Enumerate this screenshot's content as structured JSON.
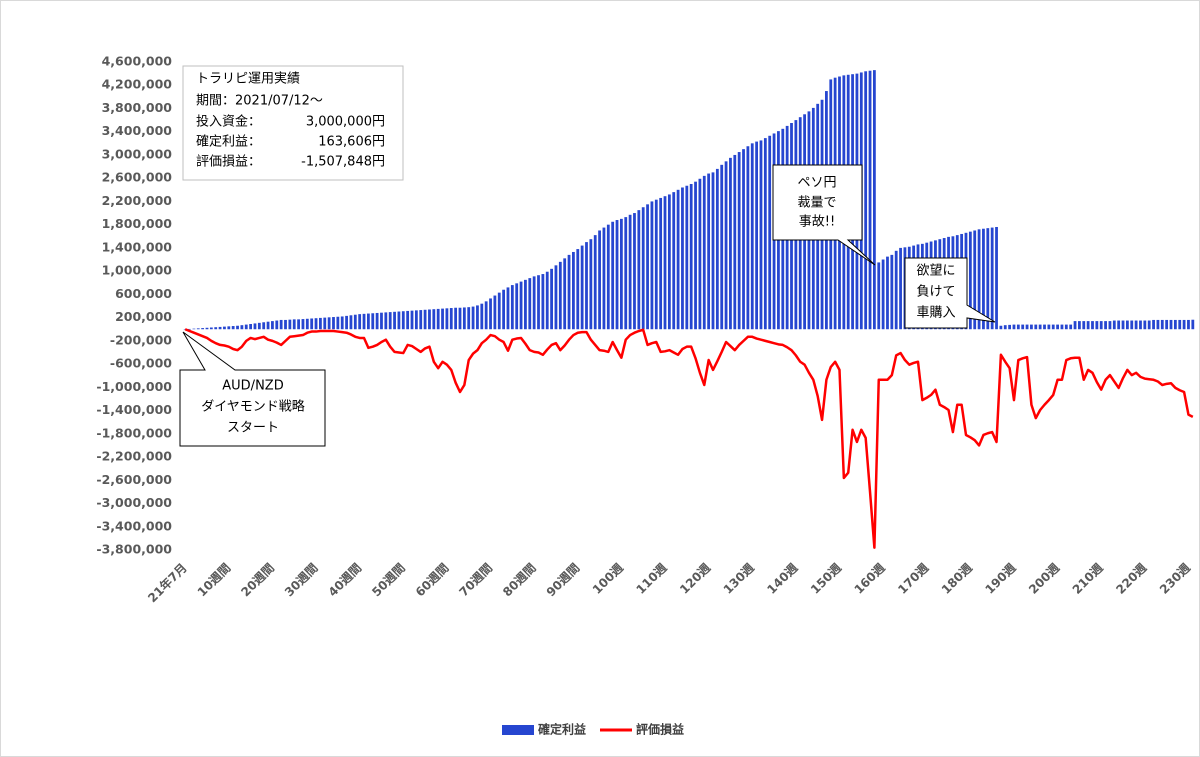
{
  "chart_data": {
    "type": "bar",
    "info_box": {
      "title": "トラリピ運用実績",
      "period": "期間：2021/07/12～",
      "rows": [
        [
          "投入資金：",
          "3,000,000円"
        ],
        [
          "確定利益：",
          "163,606円"
        ],
        [
          "評価損益：",
          "-1,507,848円"
        ]
      ]
    },
    "annotations": [
      {
        "lines": [
          "AUD/NZD",
          "ダイヤモンド戦略",
          "スタート"
        ]
      },
      {
        "lines": [
          "ペソ円",
          "裁量で",
          "事故!!"
        ]
      },
      {
        "lines": [
          "欲望に",
          "負けて",
          "車購入"
        ]
      }
    ],
    "categories": [
      "21年7月",
      null,
      null,
      null,
      null,
      null,
      null,
      null,
      null,
      null,
      "10週間",
      null,
      null,
      null,
      null,
      null,
      null,
      null,
      null,
      null,
      "20週間",
      null,
      null,
      null,
      null,
      null,
      null,
      null,
      null,
      null,
      "30週間",
      null,
      null,
      null,
      null,
      null,
      null,
      null,
      null,
      null,
      "40週間",
      null,
      null,
      null,
      null,
      null,
      null,
      null,
      null,
      null,
      "50週間",
      null,
      null,
      null,
      null,
      null,
      null,
      null,
      null,
      null,
      "60週間",
      null,
      null,
      null,
      null,
      null,
      null,
      null,
      null,
      null,
      "70週間",
      null,
      null,
      null,
      null,
      null,
      null,
      null,
      null,
      null,
      "80週間",
      null,
      null,
      null,
      null,
      null,
      null,
      null,
      null,
      null,
      "90週間",
      null,
      null,
      null,
      null,
      null,
      null,
      null,
      null,
      null,
      "100週",
      null,
      null,
      null,
      null,
      null,
      null,
      null,
      null,
      null,
      "110週",
      null,
      null,
      null,
      null,
      null,
      null,
      null,
      null,
      null,
      "120週",
      null,
      null,
      null,
      null,
      null,
      null,
      null,
      null,
      null,
      "130週",
      null,
      null,
      null,
      null,
      null,
      null,
      null,
      null,
      null,
      "140週",
      null,
      null,
      null,
      null,
      null,
      null,
      null,
      null,
      null,
      "150週",
      null,
      null,
      null,
      null,
      null,
      null,
      null,
      null,
      null,
      "160週",
      null,
      null,
      null,
      null,
      null,
      null,
      null,
      null,
      null,
      "170週",
      null,
      null,
      null,
      null,
      null,
      null,
      null,
      null,
      null,
      "180週",
      null,
      null,
      null,
      null,
      null,
      null,
      null,
      null,
      null,
      "190週",
      null,
      null,
      null,
      null,
      null,
      null,
      null,
      null,
      null,
      "200週",
      null,
      null,
      null,
      null,
      null,
      null,
      null,
      null,
      null,
      "210週",
      null,
      null,
      null,
      null,
      null,
      null,
      null,
      null,
      null,
      "220週",
      null,
      null,
      null,
      null,
      null,
      null,
      null,
      null,
      null,
      "230週",
      null
    ],
    "series": [
      {
        "name": "確定利益",
        "type": "bar",
        "color": "#2646d0",
        "values": [
          0,
          5000,
          10000,
          15000,
          20000,
          25000,
          30000,
          35000,
          40000,
          45000,
          50000,
          55000,
          60000,
          70000,
          80000,
          90000,
          100000,
          110000,
          120000,
          130000,
          140000,
          150000,
          160000,
          160000,
          165000,
          170000,
          170000,
          175000,
          180000,
          185000,
          190000,
          195000,
          200000,
          205000,
          210000,
          215000,
          220000,
          230000,
          240000,
          250000,
          260000,
          265000,
          270000,
          275000,
          280000,
          285000,
          290000,
          295000,
          300000,
          305000,
          310000,
          315000,
          320000,
          325000,
          330000,
          335000,
          340000,
          345000,
          350000,
          355000,
          360000,
          365000,
          370000,
          370000,
          375000,
          380000,
          390000,
          410000,
          440000,
          480000,
          530000,
          580000,
          630000,
          680000,
          720000,
          760000,
          790000,
          820000,
          850000,
          880000,
          910000,
          930000,
          950000,
          990000,
          1040000,
          1100000,
          1160000,
          1220000,
          1280000,
          1330000,
          1380000,
          1440000,
          1500000,
          1550000,
          1620000,
          1700000,
          1750000,
          1800000,
          1850000,
          1880000,
          1900000,
          1930000,
          1970000,
          2000000,
          2050000,
          2100000,
          2150000,
          2200000,
          2230000,
          2260000,
          2290000,
          2320000,
          2360000,
          2400000,
          2440000,
          2470000,
          2500000,
          2540000,
          2590000,
          2640000,
          2680000,
          2700000,
          2760000,
          2830000,
          2890000,
          2950000,
          3000000,
          3050000,
          3100000,
          3150000,
          3200000,
          3230000,
          3250000,
          3290000,
          3330000,
          3370000,
          3410000,
          3450000,
          3500000,
          3550000,
          3600000,
          3650000,
          3700000,
          3750000,
          3810000,
          3880000,
          3950000,
          4100000,
          4300000,
          4330000,
          4350000,
          4370000,
          4380000,
          4390000,
          4400000,
          4420000,
          4440000,
          4450000,
          4460000,
          1150000,
          1200000,
          1250000,
          1280000,
          1350000,
          1400000,
          1410000,
          1420000,
          1440000,
          1460000,
          1470000,
          1490000,
          1510000,
          1530000,
          1550000,
          1570000,
          1590000,
          1600000,
          1620000,
          1640000,
          1660000,
          1680000,
          1700000,
          1720000,
          1730000,
          1740000,
          1750000,
          1760000,
          60000,
          70000,
          75000,
          80000,
          80000,
          80000,
          80000,
          80000,
          80000,
          80000,
          80000,
          80000,
          80000,
          80000,
          80000,
          80000,
          80000,
          140000,
          140000,
          140000,
          140000,
          140000,
          140000,
          140000,
          140000,
          140000,
          150000,
          150000,
          150000,
          150000,
          150000,
          150000,
          150000,
          150000,
          150000,
          160000,
          160000,
          160000,
          160000,
          160000,
          160000,
          160000,
          160000,
          160000,
          163606
        ]
      },
      {
        "name": "評価損益",
        "type": "line",
        "color": "#ff0000",
        "values": [
          0,
          -30000,
          -60000,
          -90000,
          -120000,
          -150000,
          -200000,
          -240000,
          -270000,
          -280000,
          -300000,
          -340000,
          -360000,
          -300000,
          -200000,
          -150000,
          -170000,
          -150000,
          -130000,
          -180000,
          -200000,
          -230000,
          -270000,
          -200000,
          -130000,
          -120000,
          -110000,
          -100000,
          -60000,
          -40000,
          -40000,
          -30000,
          -30000,
          -30000,
          -30000,
          -40000,
          -50000,
          -60000,
          -90000,
          -130000,
          -150000,
          -150000,
          -320000,
          -300000,
          -270000,
          -220000,
          -180000,
          -300000,
          -390000,
          -400000,
          -410000,
          -270000,
          -290000,
          -340000,
          -390000,
          -330000,
          -300000,
          -560000,
          -670000,
          -560000,
          -610000,
          -700000,
          -920000,
          -1080000,
          -960000,
          -530000,
          -420000,
          -360000,
          -240000,
          -180000,
          -100000,
          -120000,
          -180000,
          -220000,
          -370000,
          -180000,
          -160000,
          -150000,
          -250000,
          -360000,
          -390000,
          -400000,
          -440000,
          -350000,
          -270000,
          -240000,
          -360000,
          -280000,
          -180000,
          -100000,
          -60000,
          -50000,
          -50000,
          -180000,
          -270000,
          -360000,
          -370000,
          -390000,
          -220000,
          -360000,
          -490000,
          -180000,
          -100000,
          -60000,
          -30000,
          -10000,
          -270000,
          -240000,
          -220000,
          -390000,
          -380000,
          -360000,
          -400000,
          -440000,
          -340000,
          -300000,
          -300000,
          -500000,
          -750000,
          -960000,
          -530000,
          -700000,
          -550000,
          -390000,
          -220000,
          -290000,
          -360000,
          -270000,
          -200000,
          -130000,
          -130000,
          -160000,
          -180000,
          -200000,
          -220000,
          -240000,
          -260000,
          -270000,
          -310000,
          -360000,
          -450000,
          -560000,
          -610000,
          -750000,
          -870000,
          -1150000,
          -1560000,
          -870000,
          -650000,
          -560000,
          -700000,
          -2560000,
          -2470000,
          -1730000,
          -1940000,
          -1730000,
          -1870000,
          -2800000,
          -3760000,
          -870000,
          -870000,
          -870000,
          -790000,
          -450000,
          -410000,
          -530000,
          -610000,
          -580000,
          -560000,
          -1220000,
          -1180000,
          -1130000,
          -1040000,
          -1300000,
          -1340000,
          -1390000,
          -1770000,
          -1300000,
          -1300000,
          -1820000,
          -1860000,
          -1910000,
          -2000000,
          -1820000,
          -1790000,
          -1770000,
          -1940000,
          -440000,
          -560000,
          -670000,
          -1220000,
          -530000,
          -500000,
          -480000,
          -1300000,
          -1530000,
          -1390000,
          -1300000,
          -1220000,
          -1130000,
          -870000,
          -870000,
          -530000,
          -500000,
          -490000,
          -490000,
          -870000,
          -700000,
          -750000,
          -910000,
          -1040000,
          -870000,
          -790000,
          -900000,
          -1010000,
          -840000,
          -700000,
          -790000,
          -750000,
          -820000,
          -850000,
          -860000,
          -870000,
          -900000,
          -960000,
          -940000,
          -930000,
          -1010000,
          -1050000,
          -1080000,
          -1470000,
          -1507848
        ]
      }
    ],
    "ylim": [
      -3800000,
      4600000
    ],
    "yticks": [
      {
        "value": 4600000,
        "label": "4,600,000"
      },
      {
        "value": 4200000,
        "label": "4,200,000"
      },
      {
        "value": 3800000,
        "label": "3,800,000"
      },
      {
        "value": 3400000,
        "label": "3,400,000"
      },
      {
        "value": 3000000,
        "label": "3,000,000"
      },
      {
        "value": 2600000,
        "label": "2,600,000"
      },
      {
        "value": 2200000,
        "label": "2,200,000"
      },
      {
        "value": 1800000,
        "label": "1,800,000"
      },
      {
        "value": 1400000,
        "label": "1,400,000"
      },
      {
        "value": 1000000,
        "label": "1,000,000"
      },
      {
        "value": 600000,
        "label": "600,000"
      },
      {
        "value": 200000,
        "label": "200,000"
      },
      {
        "value": -200000,
        "label": "-200,000"
      },
      {
        "value": -600000,
        "label": "-600,000"
      },
      {
        "value": -1000000,
        "label": "-1,000,000"
      },
      {
        "value": -1400000,
        "label": "-1,400,000"
      },
      {
        "value": -1800000,
        "label": "-1,800,000"
      },
      {
        "value": -2200000,
        "label": "-2,200,000"
      },
      {
        "value": -2600000,
        "label": "-2,600,000"
      },
      {
        "value": -3000000,
        "label": "-3,000,000"
      },
      {
        "value": -3400000,
        "label": "-3,400,000"
      },
      {
        "value": -3800000,
        "label": "-3,800,000"
      }
    ],
    "grid": false,
    "legend": "bottom"
  }
}
